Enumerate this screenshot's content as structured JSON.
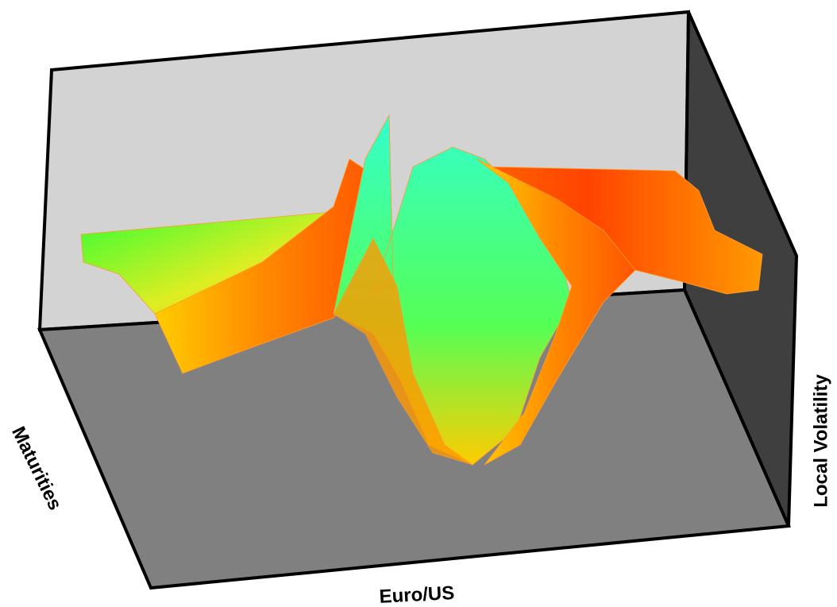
{
  "chart_data": {
    "type": "surface",
    "x_label": "Euro/US",
    "y_label": "Maturities",
    "z_label": "Local Volatility"
  }
}
